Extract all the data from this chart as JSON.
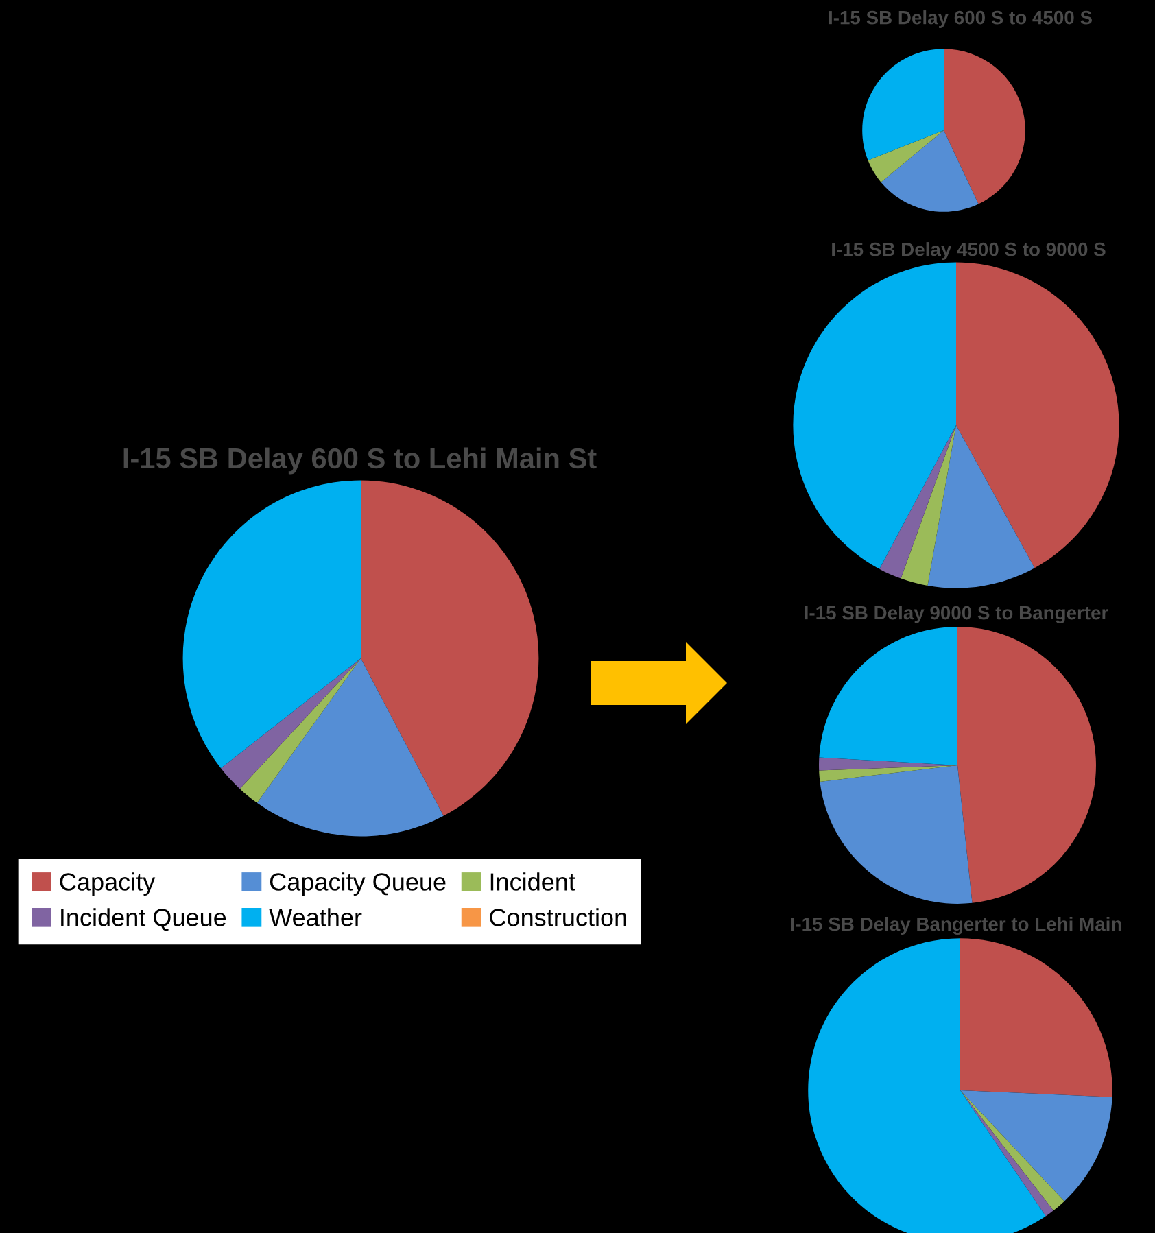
{
  "chart_data": [
    {
      "type": "pie",
      "title": "I-15 SB Delay 600 S to Lehi Main St",
      "categories": [
        "Capacity",
        "Capacity Queue",
        "Incident",
        "Incident Queue",
        "Weather",
        "Construction"
      ],
      "values": [
        42.3,
        17.6,
        2,
        2.5,
        35.6,
        0
      ],
      "colors": [
        "#c0504d",
        "#558ed5",
        "#9bbb59",
        "#8064a2",
        "#00b0f0",
        "#f79646"
      ],
      "legend": "bottom"
    },
    {
      "type": "pie",
      "title": "I-15 SB Delay 600 S to 4500 S",
      "categories": [
        null,
        null,
        null,
        null,
        null,
        null
      ],
      "values": [
        43,
        21,
        5,
        0,
        31,
        0
      ],
      "colors": [
        "#c0504d",
        "#558ed5",
        "#9bbb59",
        "#8064a2",
        "#00b0f0",
        "#f79646"
      ]
    },
    {
      "type": "pie",
      "title": "I-15 SB Delay 4500 S to 9000 S",
      "categories": [
        null,
        null,
        null,
        null,
        null,
        null
      ],
      "values": [
        42,
        10.8,
        2.7,
        2.3,
        42.2,
        0
      ],
      "colors": [
        "#c0504d",
        "#558ed5",
        "#9bbb59",
        "#8064a2",
        "#00b0f0",
        "#f79646"
      ]
    },
    {
      "type": "pie",
      "title": "I-15 SB Delay 9000 S to Bangerter",
      "categories": [
        null,
        null,
        null,
        null,
        null,
        null
      ],
      "values": [
        48.3,
        24.8,
        1.3,
        1.5,
        24.1,
        0
      ],
      "colors": [
        "#c0504d",
        "#558ed5",
        "#9bbb59",
        "#8064a2",
        "#00b0f0",
        "#f79646"
      ]
    },
    {
      "type": "pie",
      "title": "I-15 SB Delay Bangerter to Lehi Main",
      "categories": [
        null,
        null,
        null,
        null,
        null,
        null
      ],
      "values": [
        25.7,
        12.3,
        1.5,
        1,
        59.5,
        0
      ],
      "colors": [
        "#c0504d",
        "#558ed5",
        "#9bbb59",
        "#8064a2",
        "#00b0f0",
        "#f79646"
      ]
    }
  ]
}
